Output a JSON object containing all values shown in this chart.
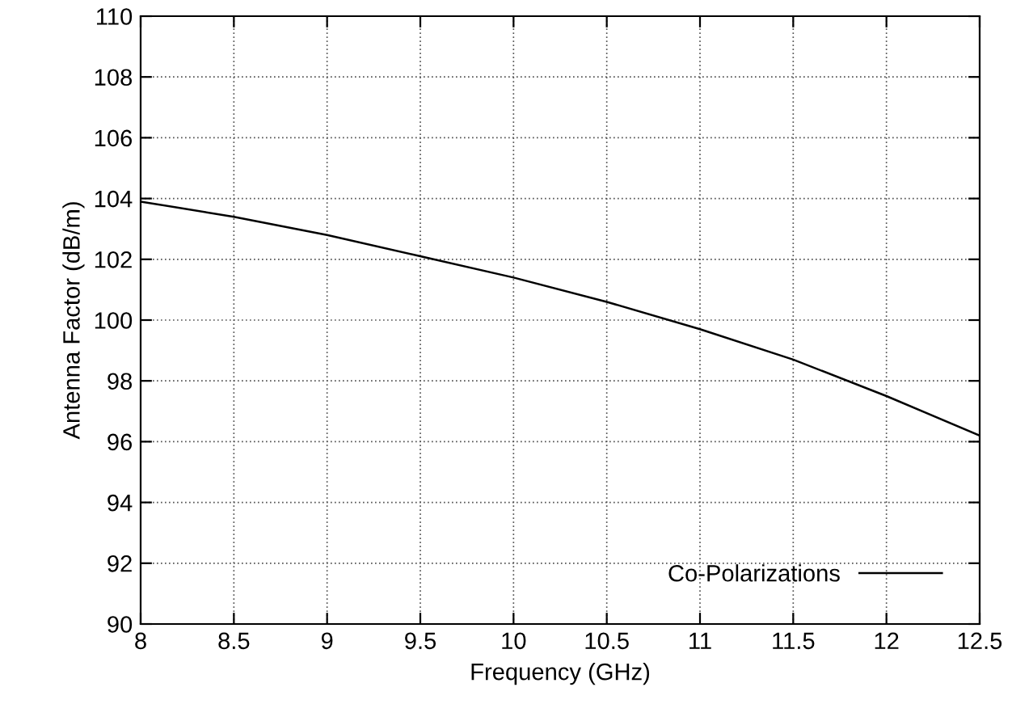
{
  "chart_data": {
    "type": "line",
    "xlabel": "Frequency (GHz)",
    "ylabel": "Antenna Factor (dB/m)",
    "xlim": [
      8,
      12.5
    ],
    "ylim": [
      90,
      110
    ],
    "xticks": [
      8,
      8.5,
      9,
      9.5,
      10,
      10.5,
      11,
      11.5,
      12,
      12.5
    ],
    "yticks": [
      90,
      92,
      94,
      96,
      98,
      100,
      102,
      104,
      106,
      108,
      110
    ],
    "grid": true,
    "legend": "bottom right",
    "marker": "none",
    "line_style": "solid",
    "series": [
      {
        "name": "Co-Polarizations",
        "color": "#000000",
        "x": [
          8,
          8.5,
          9,
          9.5,
          10,
          10.5,
          11,
          11.5,
          12,
          12.5
        ],
        "values": [
          103.9,
          103.4,
          102.8,
          102.1,
          101.4,
          100.6,
          99.7,
          98.7,
          97.5,
          96.2
        ]
      }
    ]
  }
}
